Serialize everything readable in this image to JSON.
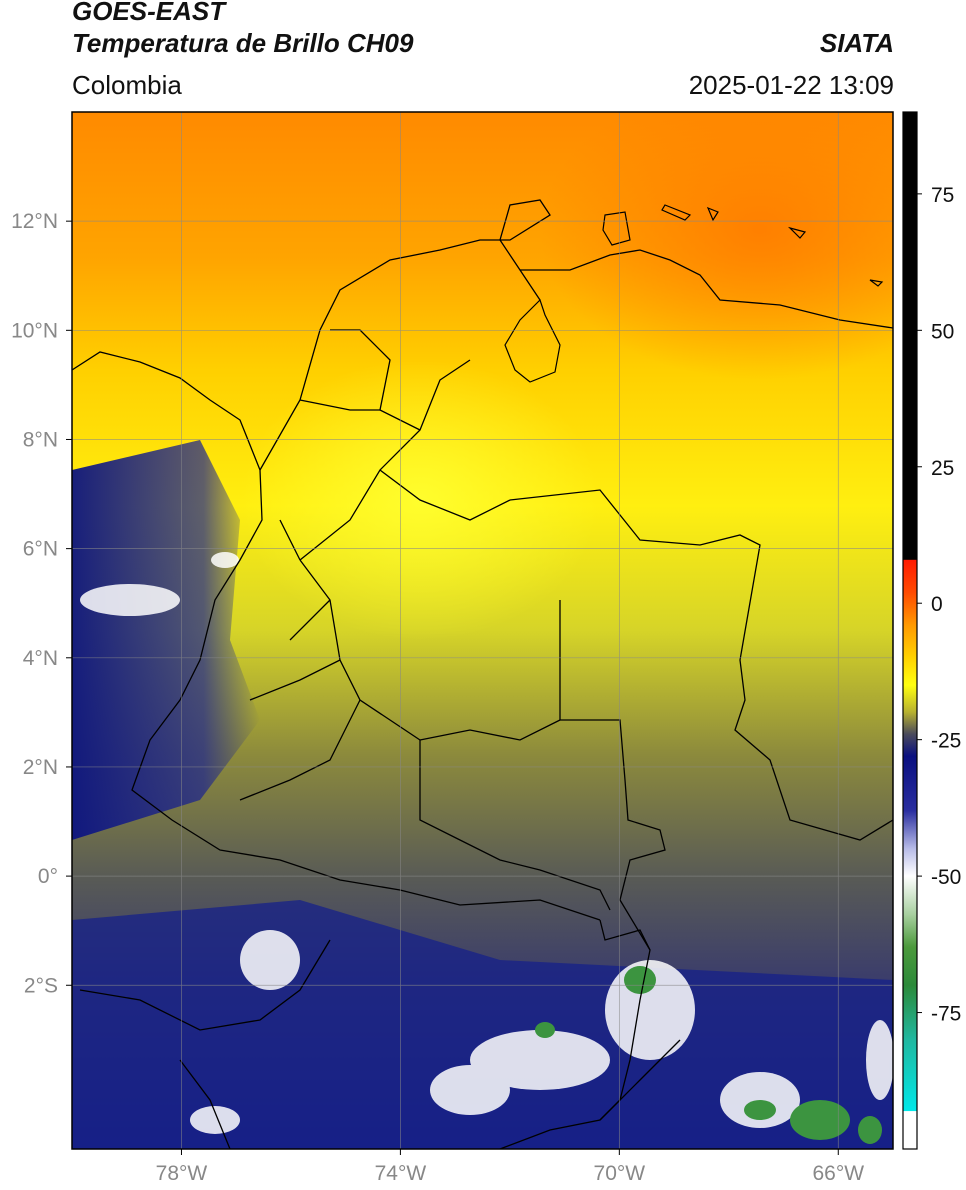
{
  "header": {
    "title_line1": "GOES-EAST",
    "title_line2": "Temperatura de Brillo CH09",
    "region": "Colombia",
    "organization": "SIATA",
    "timestamp": "2025-01-22 13:09"
  },
  "map": {
    "lon_range": [
      -80,
      -65
    ],
    "lat_range": [
      -5,
      14
    ],
    "lon_ticks": [
      {
        "value": -78,
        "label": "78°W"
      },
      {
        "value": -74,
        "label": "74°W"
      },
      {
        "value": -70,
        "label": "70°W"
      },
      {
        "value": -66,
        "label": "66°W"
      }
    ],
    "lat_ticks": [
      {
        "value": 12,
        "label": "12°N"
      },
      {
        "value": 10,
        "label": "10°N"
      },
      {
        "value": 8,
        "label": "8°N"
      },
      {
        "value": 6,
        "label": "6°N"
      },
      {
        "value": 4,
        "label": "4°N"
      },
      {
        "value": 2,
        "label": "2°N"
      },
      {
        "value": 0,
        "label": "0°"
      },
      {
        "value": -2,
        "label": "2°S"
      }
    ],
    "field": "brightness temperature",
    "grid": true,
    "tick_label_color": "#888888"
  },
  "colorbar": {
    "range": [
      -100,
      90
    ],
    "tick_values": [
      75,
      50,
      25,
      0,
      -25,
      -50,
      -75
    ],
    "tick_labels": [
      "75",
      "50",
      "25",
      "0",
      "-25",
      "-50",
      "-75"
    ],
    "stops": [
      {
        "value": 90,
        "color": "#000000"
      },
      {
        "value": 8,
        "color": "#000000"
      },
      {
        "value": 7.9,
        "color": "#ff1a00"
      },
      {
        "value": 2,
        "color": "#ff4a00"
      },
      {
        "value": -4,
        "color": "#ff9900"
      },
      {
        "value": -10,
        "color": "#ffd200"
      },
      {
        "value": -15,
        "color": "#ffff10"
      },
      {
        "value": -20,
        "color": "#b6b030"
      },
      {
        "value": -24,
        "color": "#4a4a5c"
      },
      {
        "value": -28,
        "color": "#0a1080"
      },
      {
        "value": -38,
        "color": "#2a2ea0"
      },
      {
        "value": -45,
        "color": "#b8bce8"
      },
      {
        "value": -50,
        "color": "#ffffff"
      },
      {
        "value": -57,
        "color": "#a8d0a0"
      },
      {
        "value": -63,
        "color": "#4c9a3c"
      },
      {
        "value": -70,
        "color": "#2c8a3a"
      },
      {
        "value": -80,
        "color": "#20b8a0"
      },
      {
        "value": -93,
        "color": "#00e8e8"
      },
      {
        "value": -93.1,
        "color": "#ffffff"
      },
      {
        "value": -100,
        "color": "#ffffff"
      }
    ]
  }
}
